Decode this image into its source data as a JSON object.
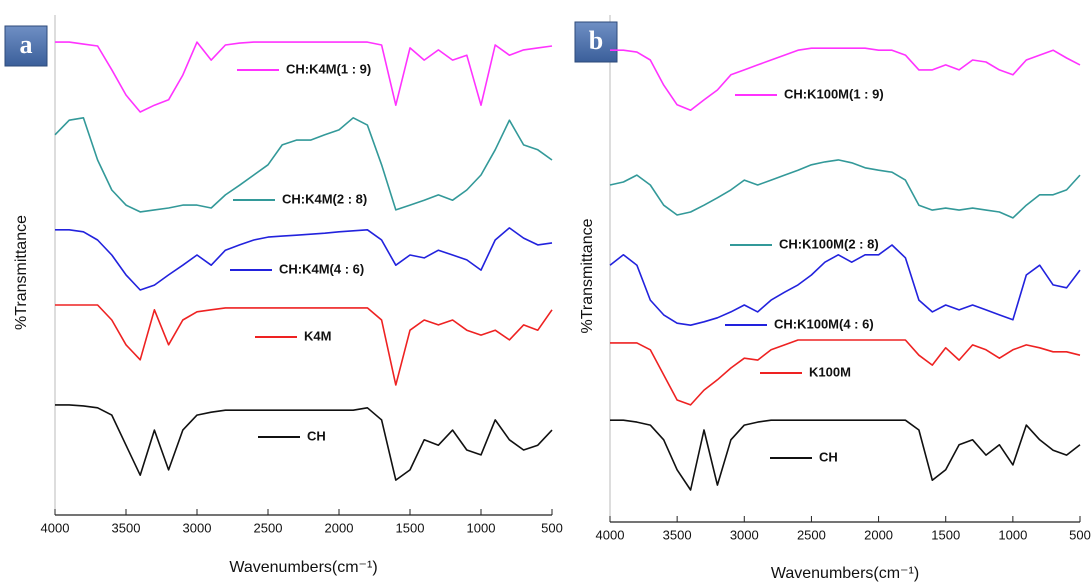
{
  "chart_data": [
    {
      "type": "line",
      "panel_label": "a",
      "x_label": "Wavenumbers(cm⁻¹)",
      "y_label": "%Transmittance",
      "x": [
        4000,
        3900,
        3800,
        3700,
        3600,
        3500,
        3400,
        3300,
        3200,
        3100,
        3000,
        2900,
        2800,
        2700,
        2600,
        2500,
        2400,
        2300,
        2200,
        2100,
        2000,
        1900,
        1800,
        1700,
        1600,
        1500,
        1400,
        1300,
        1200,
        1100,
        1000,
        900,
        800,
        700,
        600,
        500
      ],
      "xlim": [
        4000,
        500
      ],
      "xticks": [
        4000,
        3500,
        3000,
        2500,
        2000,
        1500,
        1000,
        500
      ],
      "ylim": [
        0,
        100
      ],
      "series": [
        {
          "name": "CH:K4M(1 : 9)",
          "color": "#ff33ff",
          "values": [
            97.5,
            97.5,
            97.1,
            96.7,
            91.8,
            86.6,
            83.1,
            84.5,
            85.6,
            90.7,
            97.5,
            93.8,
            96.9,
            97.3,
            97.5,
            97.5,
            97.5,
            97.5,
            97.5,
            97.5,
            97.5,
            97.5,
            97.5,
            96.9,
            84.5,
            96.3,
            93.8,
            95.9,
            93.8,
            94.8,
            84.5,
            96.9,
            94.8,
            95.9,
            96.3,
            96.7
          ]
        },
        {
          "name": "CH:K4M(2 : 8)",
          "color": "#339999",
          "values": [
            78.4,
            81.4,
            81.9,
            73.2,
            67,
            63.9,
            62.5,
            62.9,
            63.3,
            63.9,
            63.9,
            63.3,
            66,
            68,
            70.1,
            72.2,
            76.3,
            77.3,
            77.3,
            78.4,
            79.4,
            81.9,
            80.4,
            72.2,
            62.9,
            63.9,
            64.9,
            66,
            64.9,
            67,
            70.1,
            75.3,
            81.4,
            76.3,
            75.3,
            73.2
          ]
        },
        {
          "name": "CH:K4M(4 : 6)",
          "color": "#2222dd",
          "values": [
            58.8,
            58.8,
            58.4,
            56.7,
            53.6,
            49.5,
            46.4,
            47.4,
            49.5,
            51.5,
            53.6,
            51.5,
            54.6,
            55.7,
            56.7,
            57.3,
            57.5,
            57.7,
            57.9,
            58.1,
            58.4,
            58.6,
            58.8,
            56.7,
            51.5,
            53.6,
            53,
            54.6,
            53.6,
            52.6,
            50.5,
            56.7,
            59.2,
            57.1,
            55.7,
            56.1
          ]
        },
        {
          "name": "K4M",
          "color": "#ee2222",
          "values": [
            43.3,
            43.3,
            43.3,
            43.3,
            40.2,
            35.1,
            32,
            42.3,
            35.1,
            40.2,
            41.9,
            42.3,
            42.7,
            42.7,
            42.7,
            42.7,
            42.7,
            42.7,
            42.7,
            42.7,
            42.7,
            42.7,
            42.7,
            40.2,
            26.8,
            38.1,
            40.2,
            39.2,
            40.2,
            38.1,
            37.1,
            38.1,
            36.1,
            39.2,
            38.1,
            42.3
          ]
        },
        {
          "name": "CH",
          "color": "#111111",
          "values": [
            22.7,
            22.7,
            22.5,
            22.1,
            20.6,
            14.4,
            8.2,
            17.5,
            9.3,
            17.5,
            20.6,
            21.2,
            21.6,
            21.6,
            21.6,
            21.6,
            21.6,
            21.6,
            21.6,
            21.6,
            21.6,
            21.6,
            22.1,
            19.6,
            7.2,
            9.3,
            15.5,
            14.4,
            17.5,
            13.4,
            12.4,
            19.6,
            15.5,
            13.4,
            14.4,
            17.5
          ]
        }
      ]
    },
    {
      "type": "line",
      "panel_label": "b",
      "x_label": "Wavenumbers(cm⁻¹)",
      "y_label": "%Transmittance",
      "x": [
        4000,
        3900,
        3800,
        3700,
        3600,
        3500,
        3400,
        3300,
        3200,
        3100,
        3000,
        2900,
        2800,
        2700,
        2600,
        2500,
        2400,
        2300,
        2200,
        2100,
        2000,
        1900,
        1800,
        1700,
        1600,
        1500,
        1400,
        1300,
        1200,
        1100,
        1000,
        900,
        800,
        700,
        600,
        500
      ],
      "xlim": [
        4000,
        500
      ],
      "xticks": [
        4000,
        3500,
        3000,
        2500,
        2000,
        1500,
        1000,
        500
      ],
      "ylim": [
        0,
        100
      ],
      "series": [
        {
          "name": "CH:K100M(1 : 9)",
          "color": "#ff33ff",
          "values": [
            95.9,
            95.9,
            95.5,
            93.9,
            88.8,
            84.8,
            83.7,
            85.8,
            87.8,
            90.9,
            91.9,
            92.9,
            93.9,
            94.9,
            95.9,
            96.3,
            96.3,
            96.3,
            96.3,
            96.3,
            95.9,
            95.9,
            94.9,
            91.9,
            91.9,
            92.9,
            91.9,
            93.9,
            93.5,
            91.9,
            90.9,
            93.9,
            94.9,
            95.9,
            94.3,
            92.9
          ]
        },
        {
          "name": "CH:K100M(2 : 8)",
          "color": "#339999",
          "values": [
            68.5,
            69.1,
            70.5,
            68.5,
            64.4,
            62.4,
            63,
            64.4,
            65.9,
            67.5,
            69.5,
            68.5,
            69.5,
            70.5,
            71.5,
            72.6,
            73.2,
            73.6,
            73,
            72,
            71.5,
            71.1,
            69.5,
            64.4,
            63.4,
            63.8,
            63.4,
            63.8,
            63.4,
            63,
            61.8,
            64.4,
            66.5,
            66.5,
            67.5,
            70.5
          ]
        },
        {
          "name": "CH:K100M(4 : 6)",
          "color": "#2222dd",
          "values": [
            52.2,
            54.3,
            52.2,
            45.1,
            42.1,
            40.4,
            40,
            40.7,
            41.5,
            42.7,
            44.1,
            42.7,
            45.1,
            46.7,
            48.2,
            50.2,
            52.8,
            54.3,
            52.8,
            54.3,
            54.3,
            56.3,
            53.7,
            45.1,
            42.7,
            44.1,
            43.1,
            44.1,
            43.1,
            42.1,
            41.1,
            50.2,
            52.2,
            48.2,
            47.6,
            51.2
          ]
        },
        {
          "name": "K100M",
          "color": "#ee2222",
          "values": [
            36.4,
            36.4,
            36.4,
            35,
            29.9,
            24.8,
            23.8,
            26.8,
            28.9,
            31.3,
            33.3,
            32.9,
            35,
            36,
            37,
            37,
            37,
            37,
            37,
            37,
            37,
            37,
            37,
            33.9,
            31.9,
            35.4,
            32.9,
            36,
            35,
            33.3,
            35,
            36,
            35.4,
            34.6,
            34.6,
            33.9
          ]
        },
        {
          "name": "CH",
          "color": "#111111",
          "values": [
            20.7,
            20.7,
            20.3,
            19.7,
            16.7,
            10.6,
            6.5,
            18.7,
            7.5,
            16.7,
            19.7,
            20.3,
            20.7,
            20.7,
            20.7,
            20.7,
            20.7,
            20.7,
            20.7,
            20.7,
            20.7,
            20.7,
            20.7,
            18.7,
            8.5,
            10.6,
            15.7,
            16.7,
            13.6,
            15.7,
            11.6,
            19.7,
            16.7,
            14.6,
            13.6,
            15.7
          ]
        }
      ]
    }
  ]
}
